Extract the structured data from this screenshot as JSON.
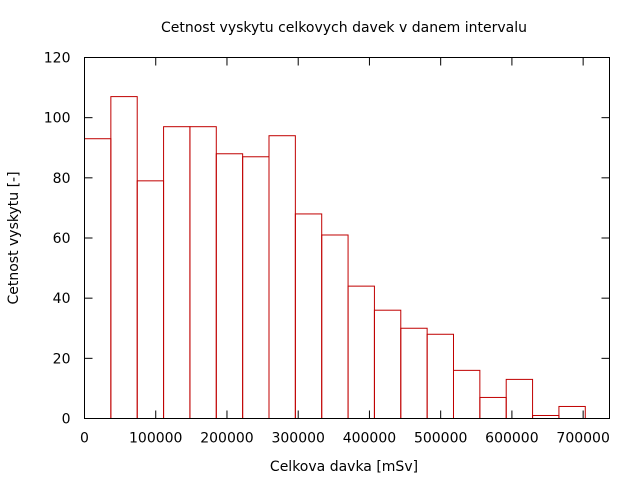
{
  "chart_data": {
    "type": "bar",
    "title": "Cetnost vyskytu celkovych davek v danem intervalu",
    "xlabel": "Celkova davka [mSv]",
    "ylabel": "Cetnost vyskytu [-]",
    "xlim": [
      0,
      737000
    ],
    "ylim": [
      0,
      120
    ],
    "grid": false,
    "legend": "none",
    "bar_color": "#c00000",
    "bin_width": 37000,
    "bin_starts": [
      0,
      37000,
      74000,
      111000,
      148000,
      185000,
      222000,
      259000,
      296000,
      333000,
      370000,
      407000,
      444000,
      481000,
      518000,
      555000,
      592000,
      629000,
      666000
    ],
    "values": [
      93,
      107,
      79,
      97,
      97,
      88,
      87,
      94,
      68,
      61,
      44,
      36,
      30,
      28,
      16,
      7,
      13,
      1,
      4
    ],
    "x_ticks": [
      0,
      100000,
      200000,
      300000,
      400000,
      500000,
      600000,
      700000
    ],
    "x_tick_labels": [
      "0",
      "100000",
      "200000",
      "300000",
      "400000",
      "500000",
      "600000",
      "700000"
    ],
    "y_ticks": [
      0,
      20,
      40,
      60,
      80,
      100,
      120
    ],
    "y_tick_labels": [
      "0",
      "20",
      "40",
      "60",
      "80",
      "100",
      "120"
    ]
  }
}
